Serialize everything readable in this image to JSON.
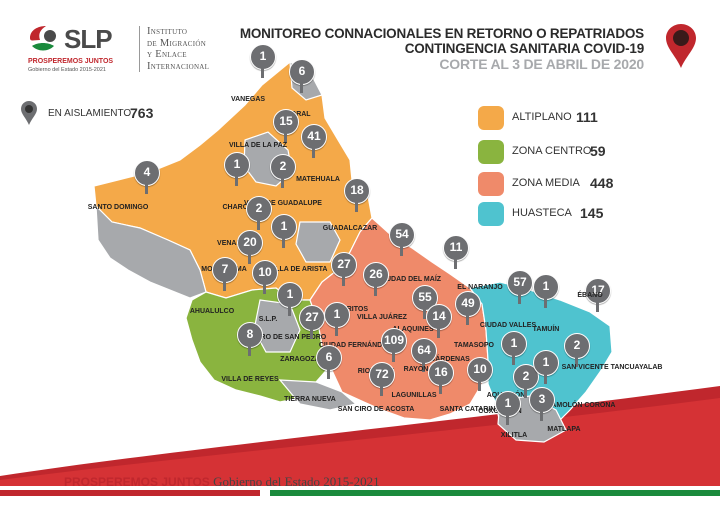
{
  "header": {
    "logo_text": "SLP",
    "logo_tagline": "PROSPEREMOS JUNTOS",
    "logo_subtitle": "Gobierno del Estado 2015-2021",
    "institution": [
      "Instituto",
      "de Migración",
      "y Enlace",
      "Internacional"
    ],
    "title_line1": "MONITOREO CONNACIONALES EN RETORNO O REPATRIADOS",
    "title_line2": "CONTINGENCIA SANITARIA COVID-19",
    "title_line3": "CORTE AL 3 DE ABRIL DE 2020"
  },
  "isolation": {
    "label": "EN AISLAMIENTO",
    "value": "763"
  },
  "legend": [
    {
      "label": "ALTIPLANO",
      "value": "111",
      "color": "#f4a949"
    },
    {
      "label": "ZONA CENTRO",
      "value": "59",
      "color": "#8ab43f"
    },
    {
      "label": "ZONA MEDIA",
      "value": "448",
      "color": "#ef8a6a"
    },
    {
      "label": "HUASTECA",
      "value": "145",
      "color": "#4fc3cf"
    }
  ],
  "regions": {
    "altiplano": "#f4a949",
    "centro": "#8ab43f",
    "media": "#ef8a6a",
    "huasteca": "#4fc3cf",
    "none": "#a7a9ac"
  },
  "markers": [
    {
      "count": "1",
      "name": "VANEGAS"
    },
    {
      "count": "6",
      "name": "CEDRAL"
    },
    {
      "count": "15",
      "name": ""
    },
    {
      "count": "41",
      "name": "MATEHUALA"
    },
    {
      "count": "4",
      "name": "SANTO DOMINGO"
    },
    {
      "count": "1",
      "name": "CHARCAS"
    },
    {
      "count": "2",
      "name": "VILLA DE GUADALUPE"
    },
    {
      "count": "18",
      "name": "GUADALCAZAR"
    },
    {
      "count": "2",
      "name": "VENADO"
    },
    {
      "count": "1",
      "name": "VILLA DE ARISTA"
    },
    {
      "count": "20",
      "name": "MOCTEZUMA"
    },
    {
      "count": "7",
      "name": "AHUALULCO"
    },
    {
      "count": "10",
      "name": "S.L.P."
    },
    {
      "count": "27",
      "name": "CERRITOS"
    },
    {
      "count": "54",
      "name": "CIUDAD DEL MAÍZ"
    },
    {
      "count": "11",
      "name": "EL NARANJO"
    },
    {
      "count": "26",
      "name": "VILLA JUÁREZ"
    },
    {
      "count": "1",
      "name": "CERRO DE SAN PEDRO"
    },
    {
      "count": "27",
      "name": "ZARAGOZA"
    },
    {
      "count": "1",
      "name": "CIUDAD FERNÁNDEZ"
    },
    {
      "count": "8",
      "name": "VILLA DE REYES"
    },
    {
      "count": "55",
      "name": "ALAQUINES"
    },
    {
      "count": "14",
      "name": "CÁRDENAS"
    },
    {
      "count": "49",
      "name": "TAMASOPO"
    },
    {
      "count": "57",
      "name": "CIUDAD VALLES"
    },
    {
      "count": "1",
      "name": "TAMUÍN"
    },
    {
      "count": "17",
      "name": "ÉBANO"
    },
    {
      "count": "109",
      "name": "RIOVERDE"
    },
    {
      "count": "6",
      "name": "TIERRA NUEVA"
    },
    {
      "count": "64",
      "name": "RAYÓN"
    },
    {
      "count": "72",
      "name": "SAN CIRO DE ACOSTA"
    },
    {
      "count": "16",
      "name": "LAGUNILLAS"
    },
    {
      "count": "10",
      "name": "SANTA CATARINA"
    },
    {
      "count": "1",
      "name": "AQUISMÓN"
    },
    {
      "count": "2",
      "name": "COXCATLÁN"
    },
    {
      "count": "1",
      "name": "TAMPAMOLÓN CORONA"
    },
    {
      "count": "2",
      "name": "SAN VICENTE TANCUAYALAB"
    },
    {
      "count": "1",
      "name": "XILITLA"
    },
    {
      "count": "3",
      "name": "MATLAPA"
    }
  ],
  "extra_labels": [
    "VILLA DE LA PAZ"
  ],
  "footer": {
    "tagline": "PROSPEREMOS JUNTOS",
    "government": "Gobierno del Estado 2015-2021",
    "bar_colors": [
      "#c0272d",
      "#ffffff",
      "#1a8a3c"
    ]
  }
}
